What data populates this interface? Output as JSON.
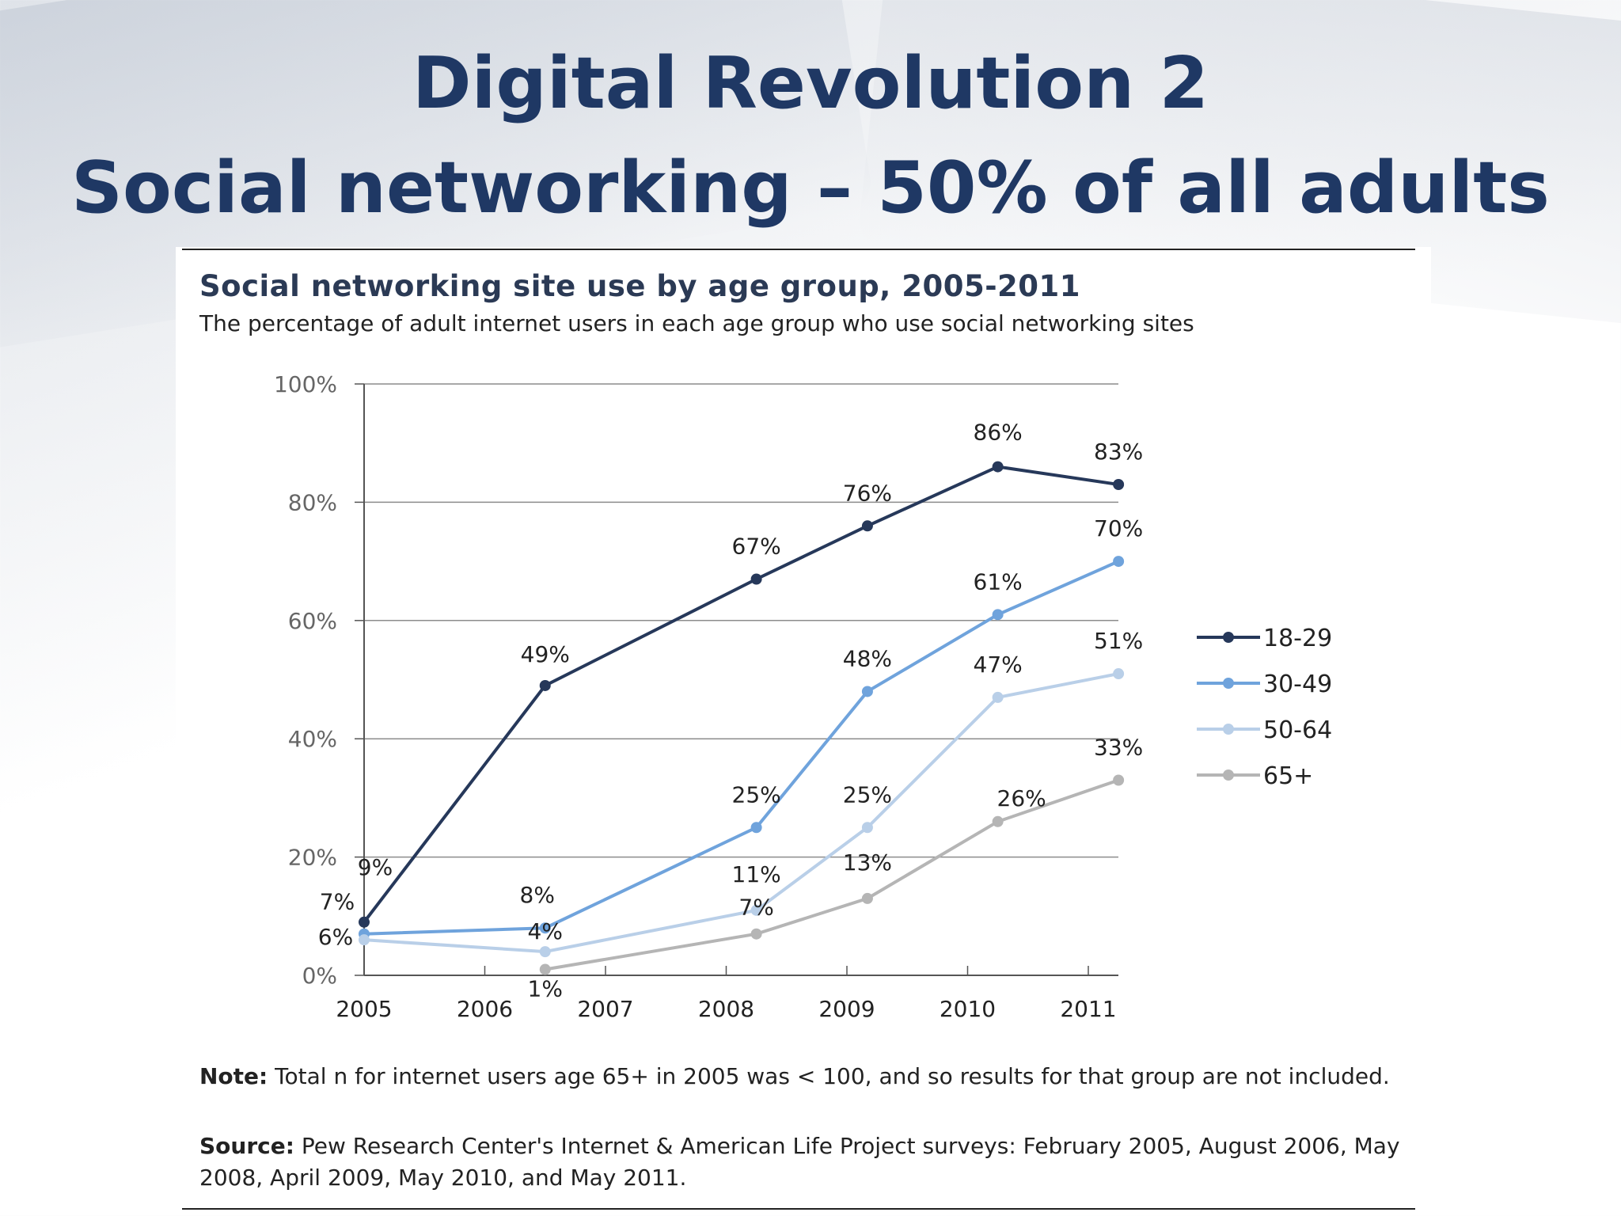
{
  "slide": {
    "title_line1": "Digital Revolution 2",
    "title_line2": "Social networking – 50% of all adults"
  },
  "figure": {
    "note_label": "Note:",
    "note_text": " Total n for internet users age 65+ in 2005 was < 100, and so results for that group are not included.",
    "source_label": "Source:",
    "source_text": "  Pew Research Center's Internet & American Life Project surveys: February 2005, August 2006, May 2008, April 2009, May 2010, and May 2011."
  },
  "chart_data": {
    "type": "line",
    "title": "Social networking site use by age group, 2005-2011",
    "subtitle": "The percentage of adult internet users in each age group who use social networking sites",
    "xlabel": "",
    "ylabel": "",
    "x_ticks": [
      "2005",
      "2006",
      "2007",
      "2008",
      "2009",
      "2010",
      "2011"
    ],
    "y_ticks": [
      "0%",
      "20%",
      "40%",
      "60%",
      "80%",
      "100%"
    ],
    "ylim": [
      0,
      100
    ],
    "xlim": [
      2005,
      2011
    ],
    "grid": true,
    "legend_position": "right",
    "series": [
      {
        "name": "18-29",
        "color": "#26385a",
        "points": [
          {
            "x": 2005.0,
            "y": 9,
            "label": "9%"
          },
          {
            "x": 2006.5,
            "y": 49,
            "label": "49%"
          },
          {
            "x": 2008.25,
            "y": 67,
            "label": "67%"
          },
          {
            "x": 2009.17,
            "y": 76,
            "label": "76%"
          },
          {
            "x": 2010.25,
            "y": 86,
            "label": "86%"
          },
          {
            "x": 2011.25,
            "y": 83,
            "label": "83%"
          }
        ]
      },
      {
        "name": "30-49",
        "color": "#6fa3dc",
        "points": [
          {
            "x": 2005.0,
            "y": 7,
            "label": "7%"
          },
          {
            "x": 2006.5,
            "y": 8,
            "label": "8%"
          },
          {
            "x": 2008.25,
            "y": 25,
            "label": "25%"
          },
          {
            "x": 2009.17,
            "y": 48,
            "label": "48%"
          },
          {
            "x": 2010.25,
            "y": 61,
            "label": "61%"
          },
          {
            "x": 2011.25,
            "y": 70,
            "label": "70%"
          }
        ]
      },
      {
        "name": "50-64",
        "color": "#b9cfe8",
        "points": [
          {
            "x": 2005.0,
            "y": 6,
            "label": "6%"
          },
          {
            "x": 2006.5,
            "y": 4,
            "label": "4%"
          },
          {
            "x": 2008.25,
            "y": 11,
            "label": "11%"
          },
          {
            "x": 2009.17,
            "y": 25,
            "label": "25%"
          },
          {
            "x": 2010.25,
            "y": 47,
            "label": "47%"
          },
          {
            "x": 2011.25,
            "y": 51,
            "label": "51%"
          }
        ]
      },
      {
        "name": "65+",
        "color": "#b5b5b5",
        "points": [
          {
            "x": 2006.5,
            "y": 1,
            "label": "1%"
          },
          {
            "x": 2008.25,
            "y": 7,
            "label": "7%"
          },
          {
            "x": 2009.17,
            "y": 13,
            "label": "13%"
          },
          {
            "x": 2010.25,
            "y": 26,
            "label": "26%"
          },
          {
            "x": 2011.25,
            "y": 33,
            "label": "33%"
          }
        ]
      }
    ]
  }
}
